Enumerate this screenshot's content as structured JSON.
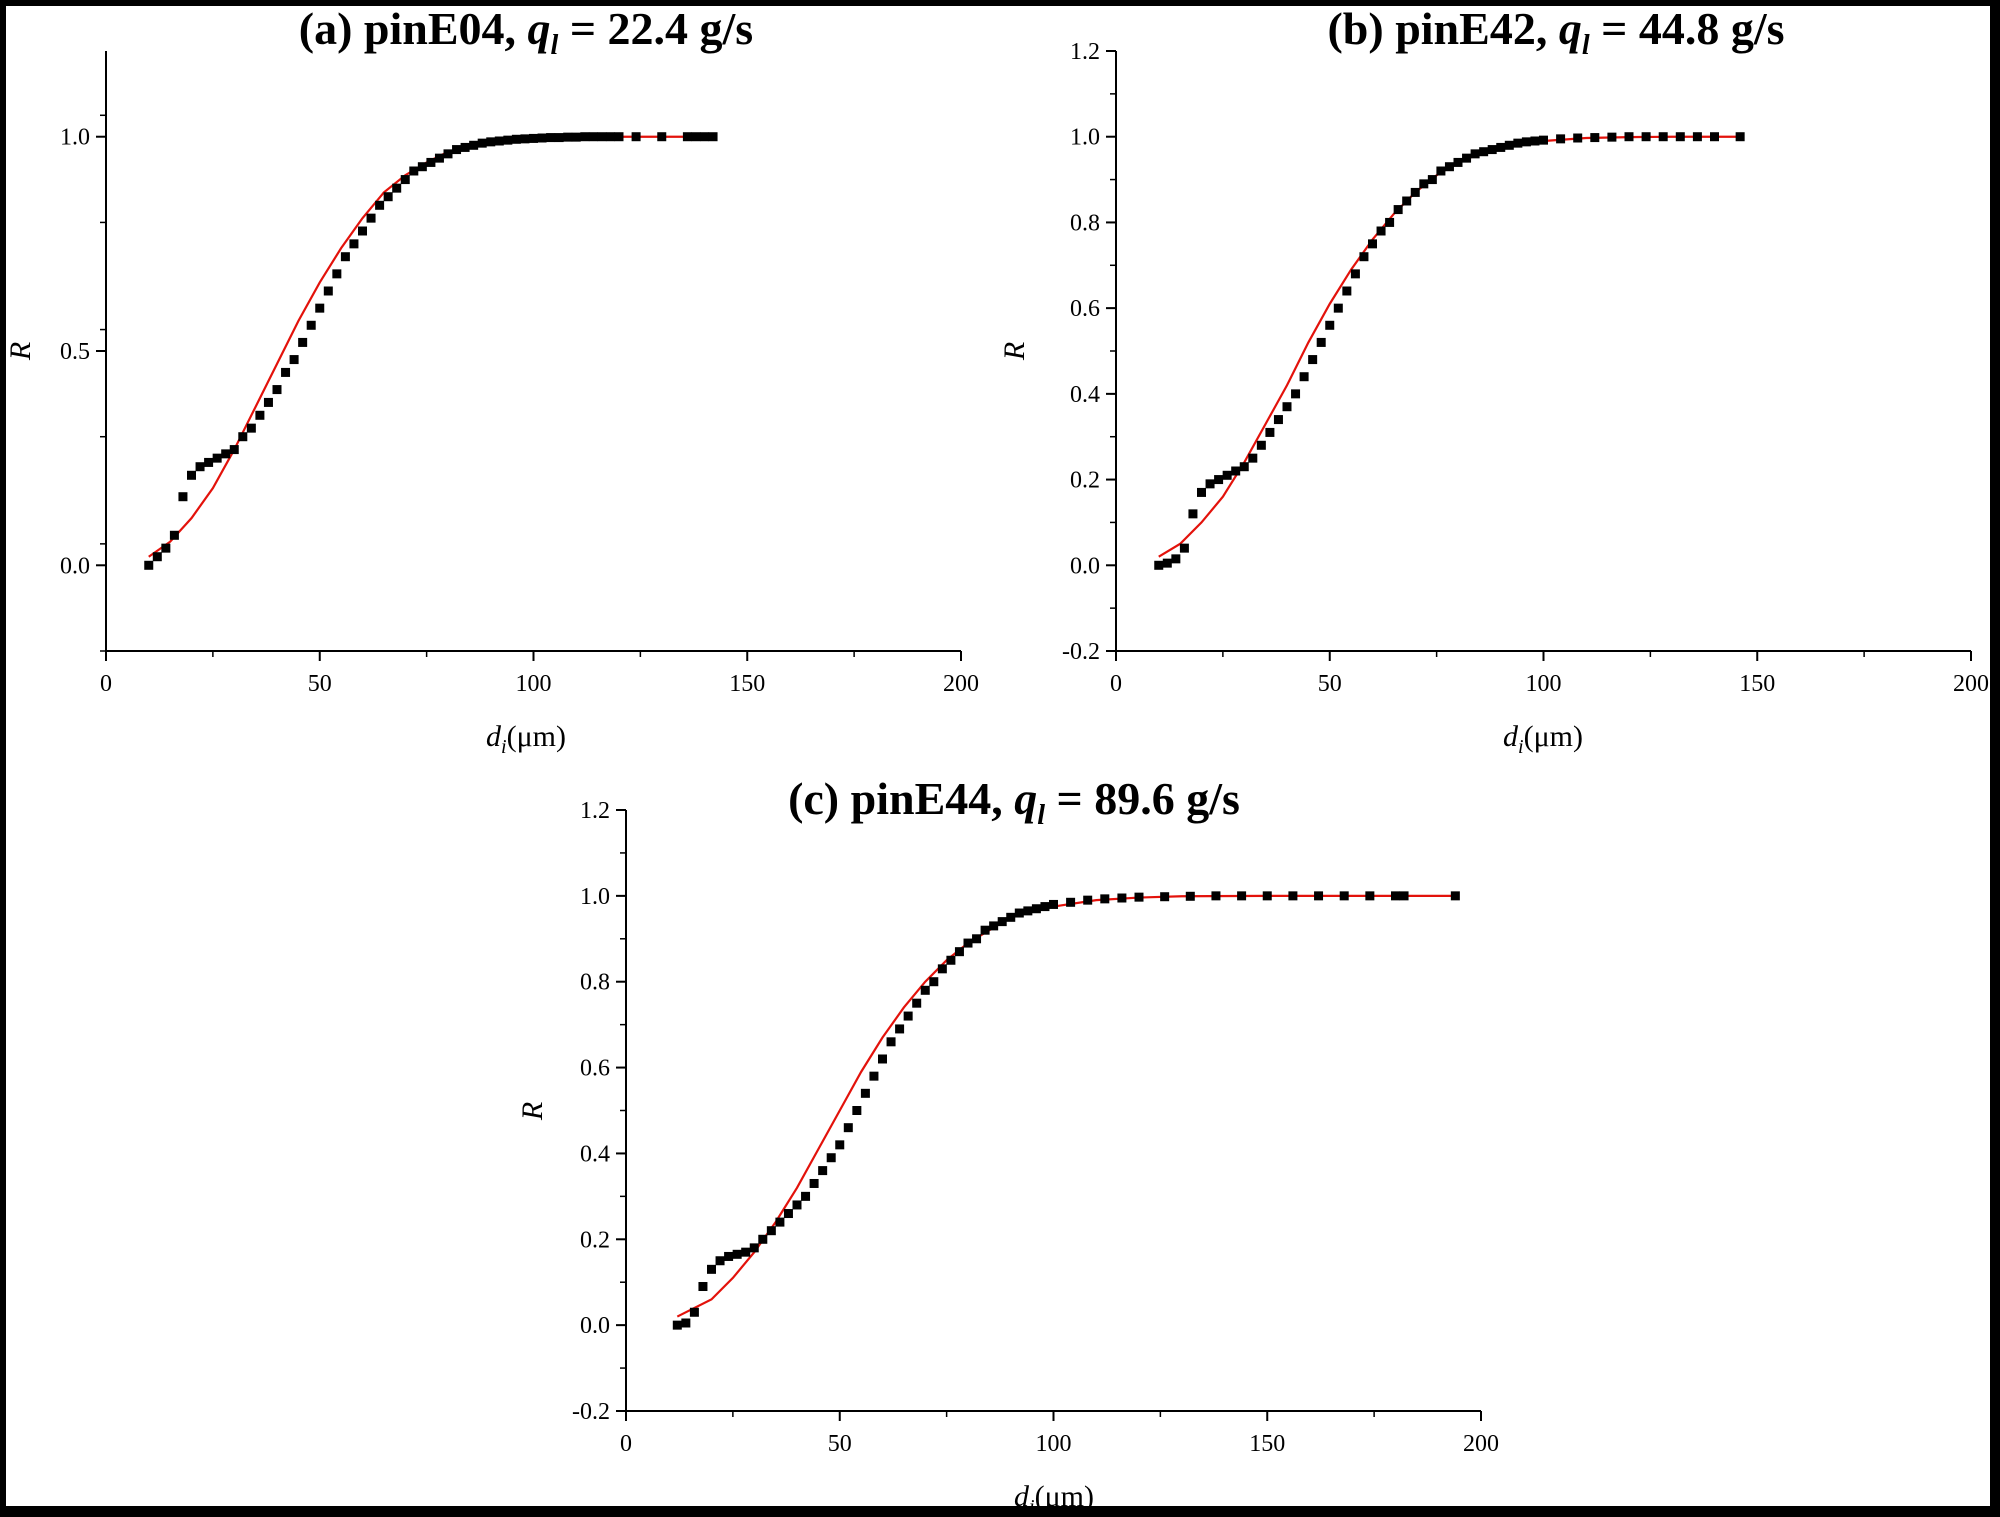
{
  "colors": {
    "marker": "#000000",
    "fit_line": "#e3120b",
    "frame": "#000000",
    "background": "#ffffff"
  },
  "chart_data": [
    {
      "type": "scatter",
      "id": "a",
      "title": {
        "prefix": "(a) pinE04, ",
        "var": "q",
        "sub": "l",
        "suffix": " = 22.4 g/s"
      },
      "xlabel": {
        "var": "d",
        "sub": "i",
        "rest": "(μm)"
      },
      "ylabel": "R",
      "xlim": [
        0,
        200
      ],
      "ylim": [
        -0.2,
        1.2
      ],
      "xticks": [
        "0",
        "50",
        "100",
        "150",
        "200"
      ],
      "yticks": [
        "0.0",
        "0.5",
        "1.0"
      ],
      "grid": false,
      "legend": "none",
      "series": [
        {
          "kind": "markers",
          "x": [
            10,
            12,
            14,
            16,
            18,
            20,
            22,
            24,
            26,
            28,
            30,
            32,
            34,
            36,
            38,
            40,
            42,
            44,
            46,
            48,
            50,
            52,
            54,
            56,
            58,
            60,
            62,
            64,
            66,
            68,
            70,
            72,
            74,
            76,
            78,
            80,
            82,
            84,
            86,
            88,
            90,
            92,
            94,
            96,
            98,
            100,
            102,
            104,
            106,
            108,
            110,
            112,
            114,
            116,
            118,
            120,
            124,
            130,
            136,
            138,
            140,
            142
          ],
          "y": [
            0.0,
            0.02,
            0.04,
            0.07,
            0.16,
            0.21,
            0.23,
            0.24,
            0.25,
            0.26,
            0.27,
            0.3,
            0.32,
            0.35,
            0.38,
            0.41,
            0.45,
            0.48,
            0.52,
            0.56,
            0.6,
            0.64,
            0.68,
            0.72,
            0.75,
            0.78,
            0.81,
            0.84,
            0.86,
            0.88,
            0.9,
            0.92,
            0.93,
            0.94,
            0.95,
            0.96,
            0.97,
            0.975,
            0.98,
            0.985,
            0.988,
            0.99,
            0.992,
            0.994,
            0.995,
            0.996,
            0.997,
            0.998,
            0.998,
            0.999,
            0.999,
            1.0,
            1.0,
            1.0,
            1.0,
            1.0,
            1.0,
            1.0,
            1.0,
            1.0,
            1.0,
            1.0
          ]
        },
        {
          "kind": "fit",
          "x": [
            10,
            15,
            20,
            25,
            30,
            35,
            40,
            45,
            50,
            55,
            60,
            65,
            70,
            75,
            80,
            85,
            90,
            95,
            100,
            110,
            120,
            130,
            142
          ],
          "y": [
            0.02,
            0.055,
            0.11,
            0.18,
            0.27,
            0.37,
            0.47,
            0.57,
            0.66,
            0.74,
            0.81,
            0.87,
            0.91,
            0.94,
            0.965,
            0.98,
            0.99,
            0.995,
            0.998,
            1.0,
            1.0,
            1.0,
            1.0
          ]
        }
      ]
    },
    {
      "type": "scatter",
      "id": "b",
      "title": {
        "prefix": "(b) pinE42, ",
        "var": "q",
        "sub": "l",
        "suffix": " = 44.8 g/s"
      },
      "xlabel": {
        "var": "d",
        "sub": "i",
        "rest": "(μm)"
      },
      "ylabel": "R",
      "xlim": [
        0,
        200
      ],
      "ylim": [
        -0.2,
        1.2
      ],
      "xticks": [
        "0",
        "50",
        "100",
        "150",
        "200"
      ],
      "yticks": [
        "-0.2",
        "0.0",
        "0.2",
        "0.4",
        "0.6",
        "0.8",
        "1.0",
        "1.2"
      ],
      "grid": false,
      "legend": "none",
      "series": [
        {
          "kind": "markers",
          "x": [
            10,
            12,
            14,
            16,
            18,
            20,
            22,
            24,
            26,
            28,
            30,
            32,
            34,
            36,
            38,
            40,
            42,
            44,
            46,
            48,
            50,
            52,
            54,
            56,
            58,
            60,
            62,
            64,
            66,
            68,
            70,
            72,
            74,
            76,
            78,
            80,
            82,
            84,
            86,
            88,
            90,
            92,
            94,
            96,
            98,
            100,
            104,
            108,
            112,
            116,
            120,
            124,
            128,
            132,
            136,
            140,
            146
          ],
          "y": [
            0.0,
            0.005,
            0.015,
            0.04,
            0.12,
            0.17,
            0.19,
            0.2,
            0.21,
            0.22,
            0.23,
            0.25,
            0.28,
            0.31,
            0.34,
            0.37,
            0.4,
            0.44,
            0.48,
            0.52,
            0.56,
            0.6,
            0.64,
            0.68,
            0.72,
            0.75,
            0.78,
            0.8,
            0.83,
            0.85,
            0.87,
            0.89,
            0.9,
            0.92,
            0.93,
            0.94,
            0.95,
            0.96,
            0.965,
            0.97,
            0.975,
            0.98,
            0.985,
            0.988,
            0.99,
            0.992,
            0.995,
            0.997,
            0.998,
            0.999,
            1.0,
            1.0,
            1.0,
            1.0,
            1.0,
            1.0,
            1.0
          ]
        },
        {
          "kind": "fit",
          "x": [
            10,
            15,
            20,
            25,
            30,
            35,
            40,
            45,
            50,
            55,
            60,
            65,
            70,
            75,
            80,
            85,
            90,
            95,
            100,
            110,
            120,
            130,
            146
          ],
          "y": [
            0.02,
            0.05,
            0.1,
            0.16,
            0.24,
            0.33,
            0.42,
            0.52,
            0.61,
            0.69,
            0.76,
            0.82,
            0.87,
            0.91,
            0.94,
            0.96,
            0.975,
            0.985,
            0.99,
            0.997,
            0.999,
            1.0,
            1.0
          ]
        }
      ]
    },
    {
      "type": "scatter",
      "id": "c",
      "title": {
        "prefix": "(c) pinE44, ",
        "var": "q",
        "sub": "l",
        "suffix": " = 89.6 g/s"
      },
      "xlabel": {
        "var": "d",
        "sub": "i",
        "rest": "(μm)"
      },
      "ylabel": "R",
      "xlim": [
        0,
        200
      ],
      "ylim": [
        -0.2,
        1.2
      ],
      "xticks": [
        "0",
        "50",
        "100",
        "150",
        "200"
      ],
      "yticks": [
        "-0.2",
        "0.0",
        "0.2",
        "0.4",
        "0.6",
        "0.8",
        "1.0",
        "1.2"
      ],
      "grid": false,
      "legend": "none",
      "series": [
        {
          "kind": "markers",
          "x": [
            12,
            14,
            16,
            18,
            20,
            22,
            24,
            26,
            28,
            30,
            32,
            34,
            36,
            38,
            40,
            42,
            44,
            46,
            48,
            50,
            52,
            54,
            56,
            58,
            60,
            62,
            64,
            66,
            68,
            70,
            72,
            74,
            76,
            78,
            80,
            82,
            84,
            86,
            88,
            90,
            92,
            94,
            96,
            98,
            100,
            104,
            108,
            112,
            116,
            120,
            126,
            132,
            138,
            144,
            150,
            156,
            162,
            168,
            174,
            180,
            182,
            194
          ],
          "y": [
            0.0,
            0.005,
            0.03,
            0.09,
            0.13,
            0.15,
            0.16,
            0.165,
            0.17,
            0.18,
            0.2,
            0.22,
            0.24,
            0.26,
            0.28,
            0.3,
            0.33,
            0.36,
            0.39,
            0.42,
            0.46,
            0.5,
            0.54,
            0.58,
            0.62,
            0.66,
            0.69,
            0.72,
            0.75,
            0.78,
            0.8,
            0.83,
            0.85,
            0.87,
            0.89,
            0.9,
            0.92,
            0.93,
            0.94,
            0.95,
            0.96,
            0.965,
            0.97,
            0.975,
            0.98,
            0.985,
            0.99,
            0.993,
            0.995,
            0.997,
            0.998,
            0.999,
            1.0,
            1.0,
            1.0,
            1.0,
            1.0,
            1.0,
            1.0,
            1.0,
            1.0,
            1.0
          ]
        },
        {
          "kind": "fit",
          "x": [
            12,
            20,
            25,
            30,
            35,
            40,
            45,
            50,
            55,
            60,
            65,
            70,
            75,
            80,
            85,
            90,
            95,
            100,
            110,
            120,
            130,
            150,
            170,
            194
          ],
          "y": [
            0.02,
            0.06,
            0.11,
            0.17,
            0.24,
            0.32,
            0.41,
            0.5,
            0.59,
            0.67,
            0.74,
            0.8,
            0.85,
            0.89,
            0.92,
            0.95,
            0.965,
            0.975,
            0.99,
            0.996,
            0.999,
            1.0,
            1.0,
            1.0
          ]
        }
      ]
    }
  ]
}
